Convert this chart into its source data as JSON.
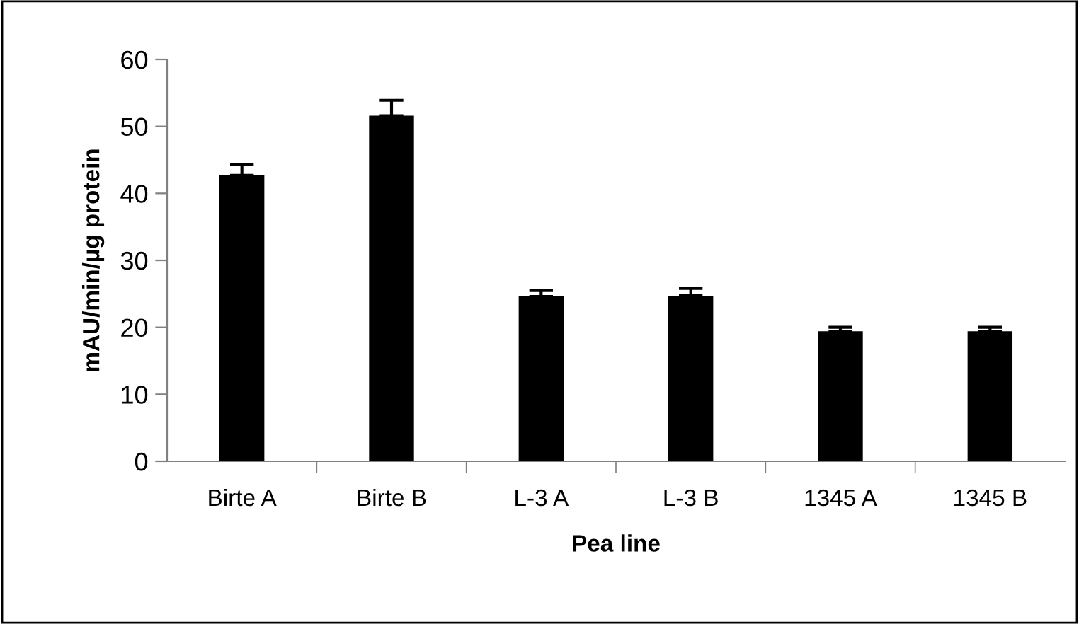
{
  "chart_data": {
    "type": "bar",
    "xlabel": "Pea line",
    "ylabel": "mAU/min/µg protein",
    "categories": [
      "Birte A",
      "Birte B",
      "L-3 A",
      "L-3 B",
      "1345 A",
      "1345 B"
    ],
    "values": [
      42.7,
      51.6,
      24.6,
      24.7,
      19.4,
      19.4
    ],
    "errors": [
      [
        42.7,
        44.3
      ],
      [
        51.6,
        53.9
      ],
      [
        24.6,
        25.5
      ],
      [
        24.7,
        25.8
      ],
      [
        19.4,
        20.0
      ],
      [
        19.4,
        20.0
      ]
    ],
    "color": "#000000",
    "ylim": [
      0,
      60
    ],
    "yticks": [
      0,
      10,
      20,
      30,
      40,
      50,
      60
    ],
    "grid": false,
    "legend": false
  }
}
